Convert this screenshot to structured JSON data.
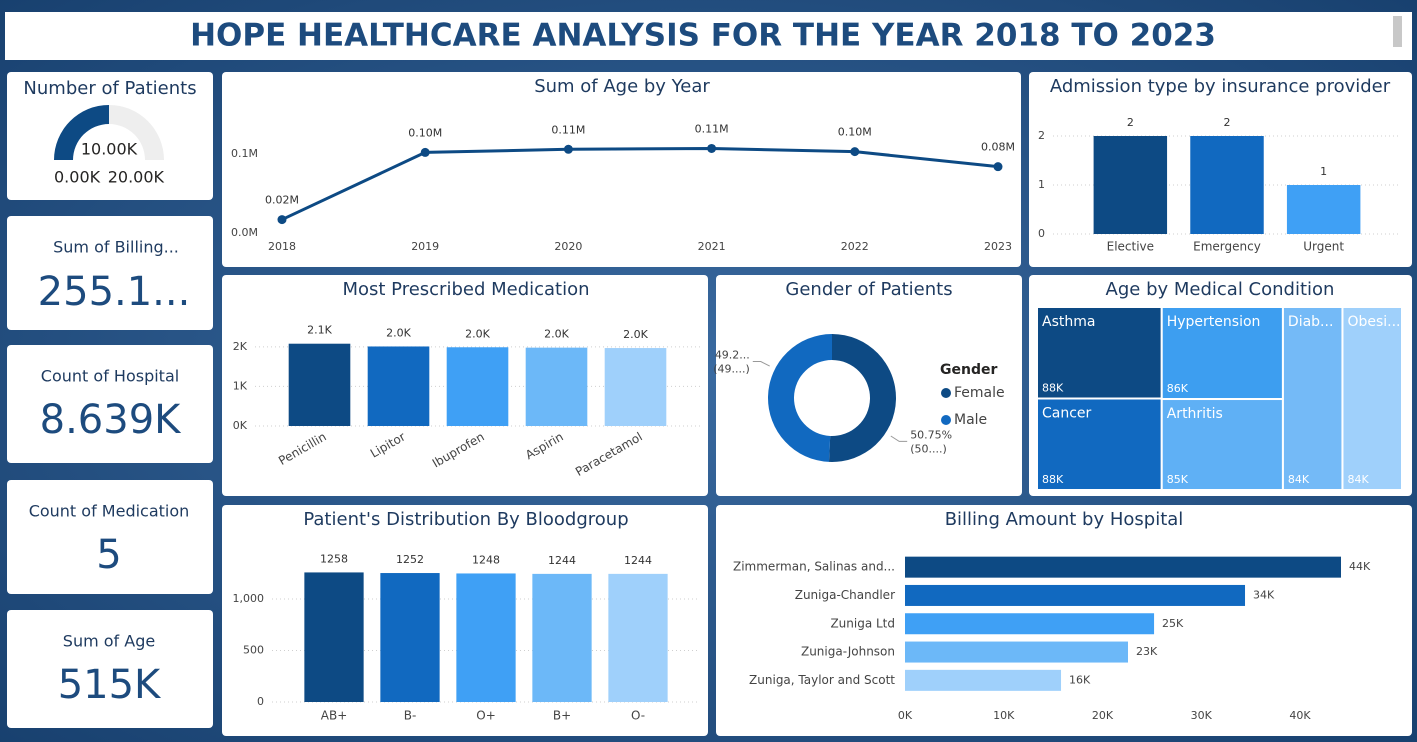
{
  "title": "HOPE HEALTHCARE ANALYSIS FOR THE YEAR 2018 TO 2023",
  "cards": [
    {
      "label": "Sum of Billing...",
      "value": "255.1..."
    },
    {
      "label": "Count of Hospital",
      "value": "8.639K"
    },
    {
      "label": "Count of Medication",
      "value": "5"
    },
    {
      "label": "Sum of Age",
      "value": "515K"
    }
  ],
  "chart_data": [
    {
      "type": "gauge",
      "title": "Number of Patients",
      "values": [
        10000
      ],
      "value_labels": [
        "10.00K"
      ],
      "ylim": [
        0,
        20000
      ],
      "yticks": [
        {
          "value": 0,
          "label": "0.00K"
        },
        {
          "value": 20000,
          "label": "20.00K"
        }
      ],
      "color": "#0d4a84",
      "track_color": "#eeeeee"
    },
    {
      "type": "line",
      "title": "Sum of Age by Year",
      "categories": [
        "2018",
        "2019",
        "2020",
        "2021",
        "2022",
        "2023"
      ],
      "values": [
        0.017,
        0.102,
        0.106,
        0.107,
        0.103,
        0.084
      ],
      "value_labels": [
        "0.02M",
        "0.10M",
        "0.11M",
        "0.11M",
        "0.10M",
        "0.08M"
      ],
      "ylim": [
        0,
        0.14
      ],
      "yticks": [
        {
          "value": 0,
          "label": "0.0M"
        },
        {
          "value": 0.1,
          "label": "0.1M"
        }
      ],
      "color": "#0d4a84",
      "grid": false
    },
    {
      "type": "bar",
      "title": "Admission type by insurance provider",
      "categories": [
        "Elective",
        "Emergency",
        "Urgent"
      ],
      "values": [
        2,
        2,
        1
      ],
      "colors": [
        "#0d4a84",
        "#1169c0",
        "#3fa0f5"
      ],
      "ylim": [
        0,
        2.5
      ],
      "yticks": [
        0,
        1,
        2
      ],
      "grid": true
    },
    {
      "type": "bar",
      "title": "Most Prescribed Medication",
      "categories": [
        "Penicillin",
        "Lipitor",
        "Ibuprofen",
        "Aspirin",
        "Paracetamol"
      ],
      "values": [
        2080,
        2010,
        1990,
        1980,
        1970
      ],
      "value_labels": [
        "2.1K",
        "2.0K",
        "2.0K",
        "2.0K",
        "2.0K"
      ],
      "colors": [
        "#0d4a84",
        "#1169c0",
        "#3fa0f5",
        "#6cb8f8",
        "#9fd0fb"
      ],
      "ylim": [
        0,
        2300
      ],
      "yticks": [
        {
          "value": 0,
          "label": "0K"
        },
        {
          "value": 1000,
          "label": "1K"
        },
        {
          "value": 2000,
          "label": "2K"
        }
      ],
      "grid": true,
      "rotate_labels": true
    },
    {
      "type": "donut",
      "title": "Gender of Patients",
      "legend_title": "Gender",
      "categories": [
        "Female",
        "Male"
      ],
      "values": [
        50.75,
        49.25
      ],
      "value_labels": [
        "50.75%",
        "49.2..."
      ],
      "value_sublabels": [
        "(50....)",
        "(49....)"
      ],
      "colors": [
        "#0d4a84",
        "#1169c0"
      ]
    },
    {
      "type": "treemap",
      "title": "Age by Medical Condition",
      "categories": [
        "Asthma",
        "Hypertension",
        "Cancer",
        "Arthritis",
        "Diab...",
        "Obesi..."
      ],
      "values": [
        88000,
        86000,
        88000,
        85000,
        84000,
        84000
      ],
      "value_labels": [
        "88K",
        "86K",
        "88K",
        "85K",
        "84K",
        "84K"
      ],
      "colors": [
        "#0d4a84",
        "#3d9ef0",
        "#1169c0",
        "#5fb0f5",
        "#74baf7",
        "#9fd0fb"
      ]
    },
    {
      "type": "bar",
      "title": "Patient's Distribution By Bloodgroup",
      "categories": [
        "AB+",
        "B-",
        "O+",
        "B+",
        "O-"
      ],
      "values": [
        1258,
        1252,
        1248,
        1244,
        1244
      ],
      "colors": [
        "#0d4a84",
        "#1169c0",
        "#3fa0f5",
        "#6cb8f8",
        "#9fd0fb"
      ],
      "ylim": [
        0,
        1500
      ],
      "yticks": [
        0,
        500,
        {
          "value": 1000,
          "label": "1,000"
        }
      ],
      "grid": true
    },
    {
      "type": "hbar",
      "title": "Billing Amount by Hospital",
      "categories": [
        "Zimmerman, Salinas and...",
        "Zuniga-Chandler",
        "Zuniga Ltd",
        "Zuniga-Johnson",
        "Zuniga, Taylor and Scott"
      ],
      "values": [
        44150,
        34430,
        25220,
        22580,
        15800
      ],
      "value_labels": [
        "44K",
        "34K",
        "25K",
        "23K",
        "16K"
      ],
      "colors": [
        "#0d4a84",
        "#1169c0",
        "#3fa0f5",
        "#6cb8f8",
        "#9fd0fb"
      ],
      "xlim": [
        0,
        45000
      ],
      "xticks": [
        {
          "value": 0,
          "label": "0K"
        },
        {
          "value": 10000,
          "label": "10K"
        },
        {
          "value": 20000,
          "label": "20K"
        },
        {
          "value": 30000,
          "label": "30K"
        },
        {
          "value": 40000,
          "label": "40K"
        }
      ]
    }
  ]
}
